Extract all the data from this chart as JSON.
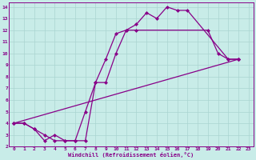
{
  "xlabel": "Windchill (Refroidissement éolien,°C)",
  "bg_color": "#c8ece8",
  "line_color": "#880088",
  "grid_color": "#aad4d0",
  "xlim": [
    -0.5,
    23.5
  ],
  "ylim": [
    2,
    14.4
  ],
  "xticks": [
    0,
    1,
    2,
    3,
    4,
    5,
    6,
    7,
    8,
    9,
    10,
    11,
    12,
    13,
    14,
    15,
    16,
    17,
    18,
    19,
    20,
    21,
    22,
    23
  ],
  "yticks": [
    2,
    3,
    4,
    5,
    6,
    7,
    8,
    9,
    10,
    11,
    12,
    13,
    14
  ],
  "line1_x": [
    0,
    1,
    2,
    3,
    4,
    5,
    6,
    7,
    8,
    9,
    10,
    11,
    12,
    13,
    14,
    15,
    16,
    17,
    21,
    22
  ],
  "line1_y": [
    4,
    4,
    3.5,
    2.5,
    3,
    2.5,
    2.5,
    2.5,
    7.5,
    9.5,
    11.7,
    12,
    12.5,
    13.5,
    13.0,
    14.0,
    13.7,
    13.7,
    9.5,
    9.5
  ],
  "line2_x": [
    0,
    1,
    2,
    3,
    4,
    5,
    6,
    7,
    8,
    9,
    10,
    11,
    12,
    19,
    20,
    21,
    22
  ],
  "line2_y": [
    4,
    4,
    3.5,
    3.0,
    2.5,
    2.5,
    2.5,
    5.0,
    7.5,
    7.5,
    10.0,
    12.0,
    12.0,
    12.0,
    10.0,
    9.5,
    9.5
  ],
  "line3_x": [
    0,
    22
  ],
  "line3_y": [
    4,
    9.5
  ]
}
